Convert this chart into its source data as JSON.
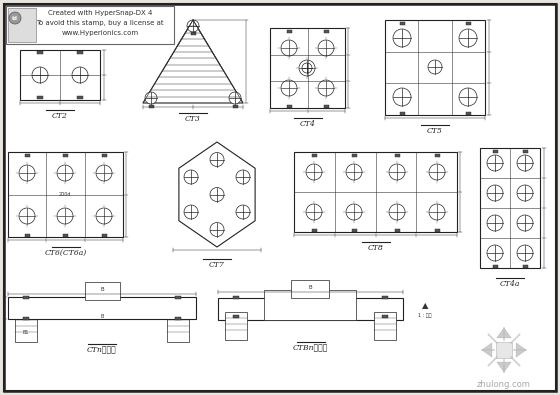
{
  "bg_color": "#e8e5e0",
  "white": "#ffffff",
  "border_color": "#222222",
  "line_color": "#333333",
  "dim_color": "#444444",
  "gray_light": "#bbbbbb",
  "stamp_text": [
    "Created with HyperSnap-DX 4",
    "To avoid this stamp, buy a license at",
    "www.Hyperionics.com"
  ],
  "watermark_text": "zhulong.com",
  "labels": {
    "ct2": "CT2",
    "ct3": "CT3",
    "ct4": "CT4",
    "ct5": "CT5",
    "ct6b": "CT6(CT6a)",
    "ct7": "CT7",
    "ct8": "CT8",
    "ct4a": "CT4a",
    "ctn": "CTn剖面图",
    "ctbn": "CTBn剖面图"
  },
  "figsize": [
    5.6,
    3.95
  ],
  "dpi": 100
}
